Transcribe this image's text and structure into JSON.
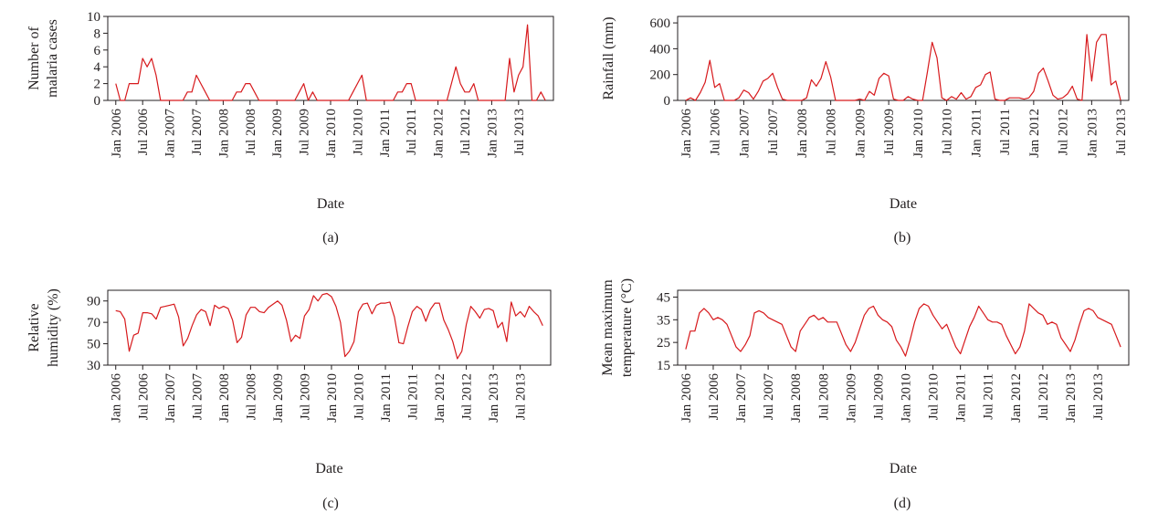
{
  "figure": {
    "panels": [
      {
        "caption": "(a)",
        "chart_data": {
          "type": "line",
          "xlabel": "Date",
          "ylabel_lines": [
            "Number of",
            "malaria cases"
          ],
          "ylim": [
            0,
            10
          ],
          "yticks": [
            0,
            2,
            4,
            6,
            8,
            10
          ],
          "x_tick_labels": [
            "Jan 2006",
            "Jul 2006",
            "Jan 2007",
            "Jul 2007",
            "Jan 2008",
            "Jul 2008",
            "Jan 2009",
            "Jul 2009",
            "Jan 2010",
            "Jul 2010",
            "Jan 2011",
            "Jul 2011",
            "Jan 2012",
            "Jul 2012",
            "Jan 2013",
            "Jul 2013"
          ],
          "grid": false,
          "color": "#d7191c",
          "series": [
            {
              "values": [
                2,
                0,
                0,
                2,
                2,
                2,
                5,
                4,
                5,
                3,
                0,
                0,
                0,
                0,
                0,
                0,
                1,
                1,
                3,
                2,
                1,
                0,
                0,
                0,
                0,
                0,
                0,
                1,
                1,
                2,
                2,
                1,
                0,
                0,
                0,
                0,
                0,
                0,
                0,
                0,
                0,
                1,
                2,
                0,
                1,
                0,
                0,
                0,
                0,
                0,
                0,
                0,
                0,
                1,
                2,
                3,
                0,
                0,
                0,
                0,
                0,
                0,
                0,
                1,
                1,
                2,
                2,
                0,
                0,
                0,
                0,
                0,
                0,
                0,
                0,
                2,
                4,
                2,
                1,
                1,
                2,
                0,
                0,
                0,
                0,
                0,
                0,
                0,
                5,
                1,
                3,
                4,
                9,
                0,
                0,
                1,
                0
              ]
            }
          ]
        }
      },
      {
        "caption": "(b)",
        "chart_data": {
          "type": "line",
          "xlabel": "Date",
          "ylabel_lines": [
            "Rainfall (mm)"
          ],
          "ylim": [
            0,
            650
          ],
          "yticks": [
            0,
            200,
            400,
            600
          ],
          "x_tick_labels": [
            "Jan 2006",
            "Jul 2006",
            "Jan 2007",
            "Jul 2007",
            "Jan 2008",
            "Jul 2008",
            "Jan 2009",
            "Jul 2009",
            "Jan 2010",
            "Jul 2010",
            "Jan 2011",
            "Jul 2011",
            "Jan 2012",
            "Jul 2012",
            "Jan 2013",
            "Jul 2013"
          ],
          "grid": false,
          "color": "#d7191c",
          "series": [
            {
              "values": [
                0,
                20,
                0,
                60,
                140,
                310,
                100,
                130,
                0,
                0,
                0,
                20,
                80,
                60,
                10,
                70,
                150,
                170,
                210,
                100,
                10,
                0,
                0,
                0,
                0,
                20,
                160,
                110,
                170,
                300,
                180,
                0,
                0,
                0,
                0,
                0,
                10,
                0,
                70,
                40,
                170,
                210,
                190,
                10,
                0,
                0,
                30,
                10,
                0,
                0,
                220,
                450,
                330,
                20,
                0,
                30,
                10,
                60,
                10,
                30,
                100,
                120,
                200,
                220,
                10,
                0,
                0,
                20,
                20,
                20,
                10,
                20,
                70,
                210,
                250,
                150,
                40,
                10,
                20,
                50,
                110,
                10,
                0,
                510,
                150,
                450,
                510,
                510,
                120,
                150,
                0
              ]
            }
          ]
        }
      },
      {
        "caption": "(c)",
        "chart_data": {
          "type": "line",
          "xlabel": "Date",
          "ylabel_lines": [
            "Relative",
            "humidity (%)"
          ],
          "ylim": [
            30,
            100
          ],
          "yticks": [
            30,
            50,
            70,
            90
          ],
          "x_tick_labels": [
            "Jan 2006",
            "Jul 2006",
            "Jan 2007",
            "Jul 2007",
            "Jan 2008",
            "Jul 2008",
            "Jan 2009",
            "Jul 2009",
            "Jan 2010",
            "Jul 2010",
            "Jan 2011",
            "Jul 2011",
            "Jan 2012",
            "Jul 2012",
            "Jan 2013",
            "Jul 2013"
          ],
          "grid": false,
          "color": "#d7191c",
          "series": [
            {
              "values": [
                81,
                80,
                73,
                43,
                58,
                60,
                79,
                79,
                78,
                73,
                84,
                85,
                86,
                87,
                75,
                48,
                55,
                67,
                77,
                82,
                80,
                67,
                86,
                83,
                85,
                83,
                72,
                51,
                56,
                77,
                84,
                84,
                80,
                79,
                84,
                87,
                90,
                86,
                72,
                52,
                58,
                55,
                76,
                82,
                95,
                90,
                96,
                97,
                94,
                85,
                70,
                38,
                43,
                52,
                80,
                87,
                88,
                78,
                86,
                88,
                88,
                89,
                75,
                51,
                50,
                66,
                80,
                85,
                82,
                71,
                82,
                88,
                88,
                72,
                63,
                52,
                36,
                43,
                68,
                85,
                80,
                74,
                82,
                83,
                81,
                65,
                70,
                52,
                89,
                76,
                80,
                75,
                85,
                80,
                76,
                67
              ]
            }
          ]
        }
      },
      {
        "caption": "(d)",
        "chart_data": {
          "type": "line",
          "xlabel": "Date",
          "ylabel_lines": [
            "Mean maximum",
            "temperature (°C)"
          ],
          "ylim": [
            15,
            48
          ],
          "yticks": [
            15,
            25,
            35,
            45
          ],
          "x_tick_labels": [
            "Jan 2006",
            "Jul 2006",
            "Jan 2007",
            "Jul 2007",
            "Jan 2008",
            "Jul 2008",
            "Jan 2009",
            "Jul 2009",
            "Jan 2010",
            "Jul 2010",
            "Jan 2011",
            "Jul 2011",
            "Jan 2012",
            "Jul 2012",
            "Jan 2013",
            "Jul 2013"
          ],
          "grid": false,
          "color": "#d7191c",
          "series": [
            {
              "values": [
                22,
                30,
                30,
                38,
                40,
                38,
                35,
                36,
                35,
                33,
                28,
                23,
                21,
                24,
                28,
                38,
                39,
                38,
                36,
                35,
                34,
                33,
                28,
                23,
                21,
                30,
                33,
                36,
                37,
                35,
                36,
                34,
                34,
                34,
                29,
                24,
                21,
                25,
                31,
                37,
                40,
                41,
                37,
                35,
                34,
                32,
                26,
                23,
                19,
                26,
                34,
                40,
                42,
                41,
                37,
                34,
                31,
                33,
                28,
                23,
                20,
                26,
                32,
                36,
                41,
                38,
                35,
                34,
                34,
                33,
                28,
                24,
                20,
                23,
                30,
                42,
                40,
                38,
                37,
                33,
                34,
                33,
                27,
                24,
                21,
                26,
                33,
                39,
                40,
                39,
                36,
                35,
                34,
                33,
                28,
                23
              ]
            }
          ]
        }
      }
    ]
  }
}
